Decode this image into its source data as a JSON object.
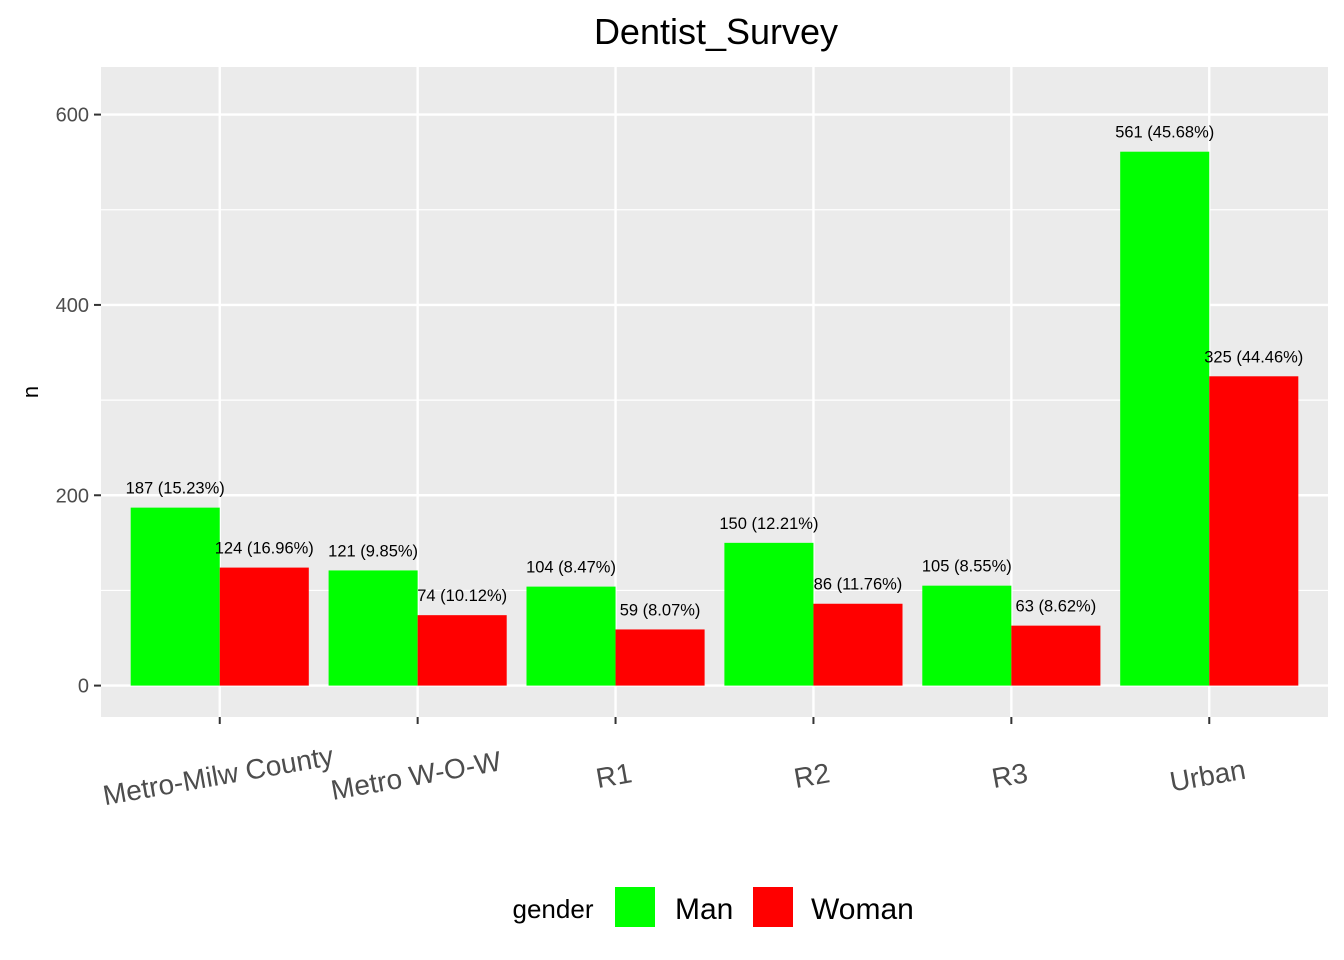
{
  "chart_data": {
    "type": "bar",
    "title": "Dentist_Survey",
    "xlabel": "",
    "ylabel": "n",
    "ylim": [
      -33,
      650
    ],
    "yticks": [
      0,
      200,
      400,
      600
    ],
    "categories": [
      "Metro-Milw County",
      "Metro W-O-W",
      "R1",
      "R2",
      "R3",
      "Urban"
    ],
    "series": [
      {
        "name": "Man",
        "color": "#00ff00",
        "values": [
          187,
          121,
          104,
          150,
          105,
          561
        ],
        "labels": [
          "187 (15.23%)",
          "121 (9.85%)",
          "104 (8.47%)",
          "150 (12.21%)",
          "105 (8.55%)",
          "561 (45.68%)"
        ]
      },
      {
        "name": "Woman",
        "color": "#ff0000",
        "values": [
          124,
          74,
          59,
          86,
          63,
          325
        ],
        "labels": [
          "124 (16.96%)",
          "74 (10.12%)",
          "59 (8.07%)",
          "86 (11.76%)",
          "63 (8.62%)",
          "325 (44.46%)"
        ]
      }
    ],
    "legend": {
      "title": "gender",
      "position": "bottom"
    },
    "grid": true,
    "panel_background": "#ebebeb"
  }
}
